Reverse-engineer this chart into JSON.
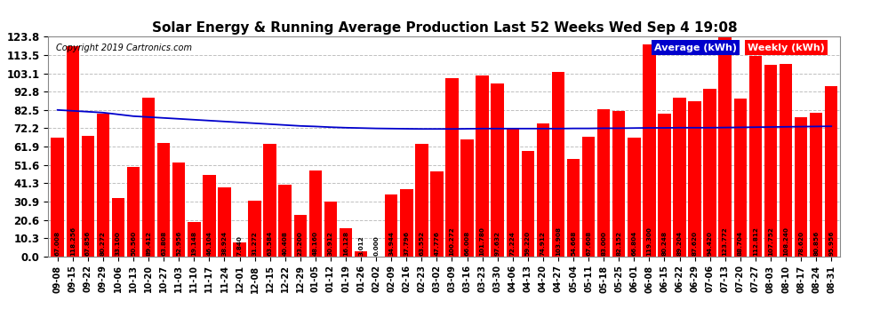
{
  "title": "Solar Energy & Running Average Production Last 52 Weeks Wed Sep 4 19:08",
  "copyright": "Copyright 2019 Cartronics.com",
  "bar_color": "#ff0000",
  "avg_line_color": "#0000cc",
  "background_color": "#ffffff",
  "plot_bg_color": "#ffffff",
  "grid_color": "#c0c0c0",
  "ylim": [
    0,
    123.8
  ],
  "yticks": [
    0.0,
    10.3,
    20.6,
    30.9,
    41.3,
    51.6,
    61.9,
    72.2,
    82.5,
    92.8,
    103.1,
    113.5,
    123.8
  ],
  "legend_avg_label": "Average (kWh)",
  "legend_weekly_label": "Weekly (kWh)",
  "legend_avg_bg": "#0000cc",
  "legend_weekly_bg": "#ff0000",
  "categories": [
    "09-08",
    "09-15",
    "09-22",
    "09-29",
    "10-06",
    "10-13",
    "10-20",
    "10-27",
    "11-03",
    "11-10",
    "11-17",
    "11-24",
    "12-01",
    "12-08",
    "12-15",
    "12-22",
    "12-29",
    "01-05",
    "01-12",
    "01-19",
    "01-26",
    "02-02",
    "02-09",
    "02-16",
    "02-23",
    "03-02",
    "03-09",
    "03-16",
    "03-23",
    "03-30",
    "04-06",
    "04-13",
    "04-20",
    "04-27",
    "05-04",
    "05-11",
    "05-18",
    "05-25",
    "06-01",
    "06-08",
    "06-15",
    "06-22",
    "06-29",
    "07-06",
    "07-13",
    "07-20",
    "07-27",
    "08-03",
    "08-10",
    "08-17",
    "08-24",
    "08-31"
  ],
  "weekly_values": [
    67.008,
    118.256,
    67.856,
    80.272,
    33.1,
    50.56,
    89.412,
    63.808,
    52.956,
    19.148,
    46.104,
    38.924,
    7.84,
    31.272,
    63.584,
    40.408,
    23.2,
    48.16,
    30.912,
    16.128,
    3.012,
    0.0,
    34.944,
    37.796,
    63.552,
    47.776,
    100.272,
    66.008,
    101.78,
    97.632,
    72.224,
    59.22,
    74.912,
    103.908,
    54.668,
    67.608,
    83.0,
    82.152,
    66.804,
    119.3,
    80.248,
    89.204,
    87.62,
    94.42,
    123.772,
    88.704,
    112.812,
    107.752,
    108.24,
    78.62,
    80.856,
    95.956
  ],
  "avg_values": [
    82.5,
    82.0,
    81.5,
    81.0,
    80.0,
    79.0,
    78.5,
    78.0,
    77.5,
    77.0,
    76.5,
    76.0,
    75.5,
    75.0,
    74.5,
    74.0,
    73.5,
    73.2,
    72.8,
    72.5,
    72.3,
    72.1,
    72.0,
    71.9,
    71.8,
    71.8,
    71.8,
    71.9,
    72.0,
    72.0,
    72.0,
    72.0,
    72.0,
    72.0,
    72.1,
    72.1,
    72.2,
    72.2,
    72.3,
    72.4,
    72.4,
    72.5,
    72.5,
    72.5,
    72.6,
    72.7,
    72.8,
    72.9,
    73.0,
    73.1,
    73.2,
    73.3
  ]
}
